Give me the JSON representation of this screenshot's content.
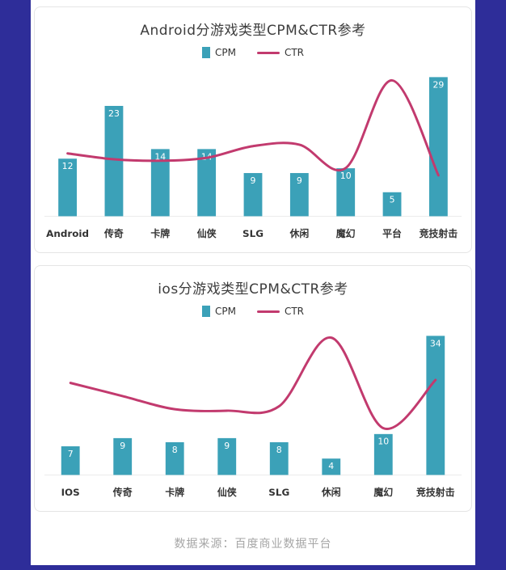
{
  "page": {
    "background_color": "#2e2d99",
    "card_background": "#ffffff",
    "footer_text": "数据来源：百度商业数据平台"
  },
  "colors": {
    "cpm_bar": "#3ba1b8",
    "ctr_line": "#c23a6e",
    "bar_value_label": "#ffffff",
    "category_label": "#333333",
    "title_text": "#3d3d3d",
    "footer_text": "#a6a6a6"
  },
  "chart_data": [
    {
      "type": "bar+line",
      "title": "Android分游戏类型CPM&CTR参考",
      "legend": [
        "CPM",
        "CTR"
      ],
      "categories": [
        "Android",
        "传奇",
        "卡牌",
        "仙侠",
        "SLG",
        "休闲",
        "魔幻",
        "平台",
        "竞技射击"
      ],
      "series": [
        {
          "name": "CPM",
          "type": "bar",
          "values": [
            12,
            23,
            14,
            14,
            9,
            9,
            10,
            5,
            29
          ]
        },
        {
          "name": "CTR",
          "type": "line",
          "axis": "unlabeled",
          "relative_values": [
            0.43,
            0.39,
            0.38,
            0.4,
            0.48,
            0.49,
            0.33,
            0.93,
            0.28
          ]
        }
      ],
      "grid": false,
      "legend_position": "top"
    },
    {
      "type": "bar+line",
      "title": "ios分游戏类型CPM&CTR参考",
      "legend": [
        "CPM",
        "CTR"
      ],
      "categories": [
        "IOS",
        "传奇",
        "卡牌",
        "仙侠",
        "SLG",
        "休闲",
        "魔幻",
        "竞技射击"
      ],
      "series": [
        {
          "name": "CPM",
          "type": "bar",
          "values": [
            7,
            9,
            8,
            9,
            8,
            4,
            10,
            34
          ]
        },
        {
          "name": "CTR",
          "type": "line",
          "axis": "unlabeled",
          "relative_values": [
            0.63,
            0.54,
            0.45,
            0.44,
            0.47,
            0.94,
            0.32,
            0.65
          ]
        }
      ],
      "grid": false,
      "legend_position": "top"
    }
  ]
}
